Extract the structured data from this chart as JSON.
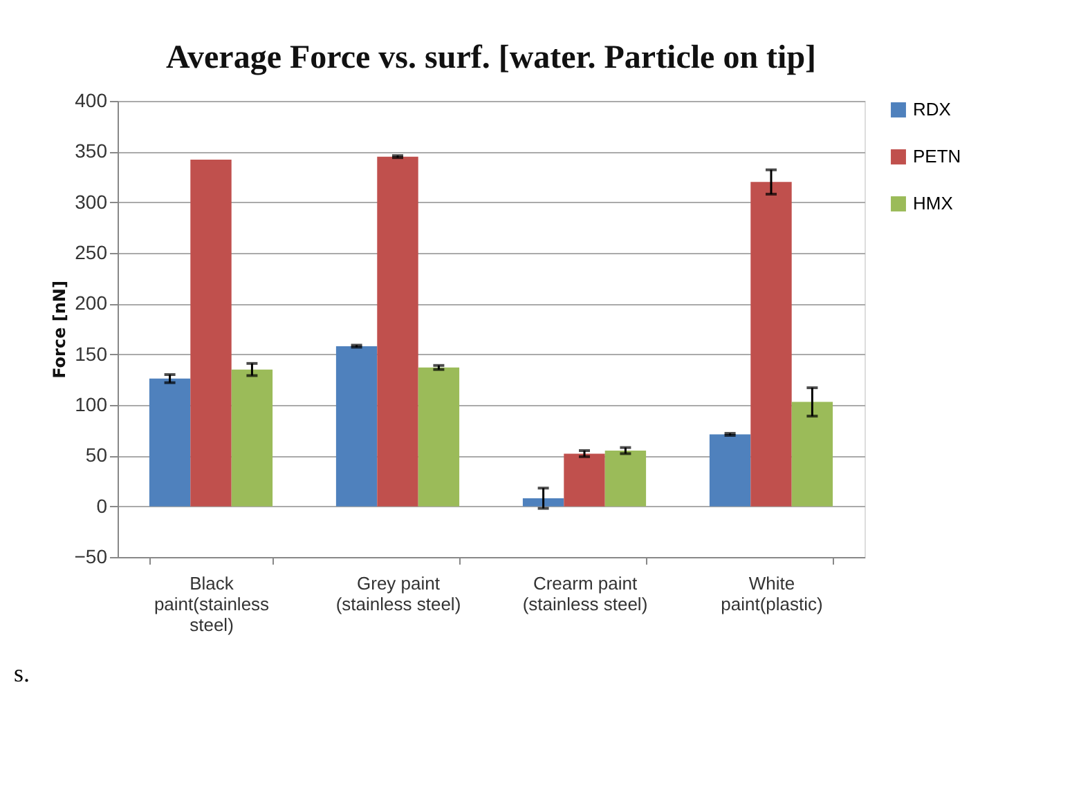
{
  "chart_data": {
    "type": "bar",
    "title": "Average Force vs. surf. [water. Particle on tip]",
    "ylabel": "Force [nN]",
    "categories": [
      "Black paint(stainless steel)",
      "Grey paint (stainless steel)",
      "Crearm paint (stainless steel)",
      "White paint(plastic)"
    ],
    "series": [
      {
        "name": "RDX",
        "color": "#4f81bd",
        "values": [
          126,
          158,
          8,
          71
        ],
        "errors": [
          4,
          1,
          10,
          1
        ]
      },
      {
        "name": "PETN",
        "color": "#c0504d",
        "values": [
          342,
          345,
          52,
          320
        ],
        "errors": [
          null,
          1,
          3,
          12
        ]
      },
      {
        "name": "HMX",
        "color": "#9bbb59",
        "values": [
          135,
          137,
          55,
          103
        ],
        "errors": [
          6,
          2,
          3,
          14
        ]
      }
    ],
    "ylim": [
      -50,
      400
    ],
    "yticks": [
      -50,
      0,
      50,
      100,
      150,
      200,
      250,
      300,
      350,
      400
    ],
    "grid": "y",
    "legend": "right",
    "annotations": [
      "s."
    ]
  }
}
